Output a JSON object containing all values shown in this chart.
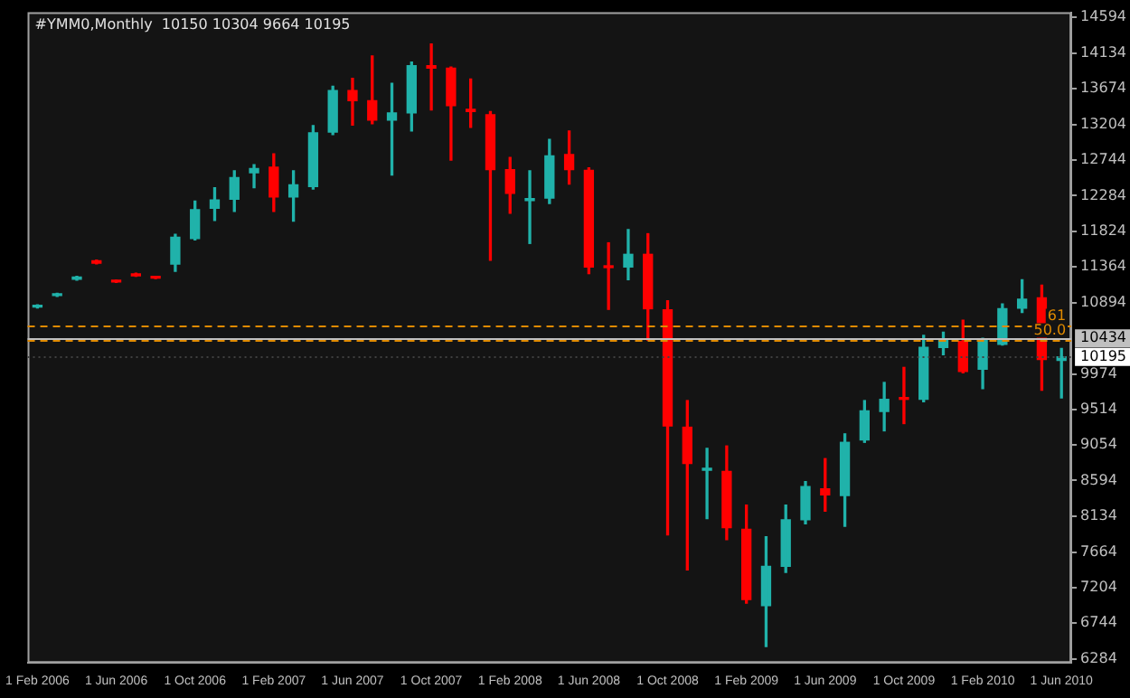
{
  "chart_data": {
    "type": "candlestick",
    "title": "#YMM0,Monthly  10150 10304 9664 10195",
    "categories": [
      "1 Feb 2006",
      null,
      null,
      null,
      "1 Jun 2006",
      null,
      null,
      null,
      "1 Oct 2006",
      null,
      null,
      null,
      "1 Feb 2007",
      null,
      null,
      null,
      "1 Jun 2007",
      null,
      null,
      null,
      "1 Oct 2007",
      null,
      null,
      null,
      "1 Feb 2008",
      null,
      null,
      null,
      "1 Jun 2008",
      null,
      null,
      null,
      "1 Oct 2008",
      null,
      null,
      null,
      "1 Feb 2009",
      null,
      null,
      null,
      "1 Jun 2009",
      null,
      null,
      null,
      "1 Oct 2009",
      null,
      null,
      null,
      "1 Feb 2010",
      null,
      null,
      null,
      "1 Jun 2010"
    ],
    "ohlc": [
      [
        10840,
        10870,
        10830,
        10860
      ],
      [
        10990,
        11020,
        10980,
        11010
      ],
      [
        11200,
        11240,
        11190,
        11230
      ],
      [
        11440,
        11450,
        11400,
        11410
      ],
      [
        11180,
        11190,
        11160,
        11165
      ],
      [
        11270,
        11280,
        11240,
        11245
      ],
      [
        11225,
        11230,
        11210,
        11215
      ],
      [
        11399,
        11783,
        11305,
        11744
      ],
      [
        11728,
        12213,
        11712,
        12104
      ],
      [
        12120,
        12386,
        11963,
        12229
      ],
      [
        12237,
        12605,
        12080,
        12519
      ],
      [
        12582,
        12684,
        12386,
        12637
      ],
      [
        12652,
        12825,
        12080,
        12268
      ],
      [
        12268,
        12605,
        11955,
        12425
      ],
      [
        12402,
        13193,
        12370,
        13099
      ],
      [
        13107,
        13702,
        13075,
        13647
      ],
      [
        13647,
        13804,
        13200,
        13514
      ],
      [
        13514,
        14094,
        13216,
        13263
      ],
      [
        13263,
        13741,
        12550,
        13357
      ],
      [
        13357,
        14015,
        13122,
        13968
      ],
      [
        13968,
        14250,
        13396,
        13937
      ],
      [
        13937,
        13950,
        12746,
        13451
      ],
      [
        13404,
        13796,
        13169,
        13373
      ],
      [
        13334,
        13373,
        11446,
        12621
      ],
      [
        12621,
        12778,
        12057,
        12315
      ],
      [
        12221,
        12605,
        11665,
        12245
      ],
      [
        12253,
        13013,
        12182,
        12801
      ],
      [
        12817,
        13122,
        12433,
        12621
      ],
      [
        12613,
        12644,
        11274,
        11360
      ],
      [
        11368,
        11673,
        10811,
        11352
      ],
      [
        11360,
        11845,
        11195,
        11524
      ],
      [
        11524,
        11791,
        10412,
        10819
      ],
      [
        10804,
        10921,
        7890,
        9300
      ],
      [
        9284,
        9629,
        7435,
        8814
      ],
      [
        8728,
        9010,
        8101,
        8736
      ],
      [
        8712,
        9041,
        7827,
        7984
      ],
      [
        7960,
        8274,
        7005,
        7052
      ],
      [
        6973,
        7866,
        6441,
        7482
      ],
      [
        7482,
        8274,
        7404,
        8085
      ],
      [
        8085,
        8579,
        8031,
        8516
      ],
      [
        8485,
        8877,
        8195,
        8407
      ],
      [
        8399,
        9198,
        8000,
        9088
      ],
      [
        9119,
        9629,
        9088,
        9496
      ],
      [
        9488,
        9864,
        9237,
        9645
      ],
      [
        9652,
        10059,
        9331,
        9645
      ],
      [
        9645,
        10475,
        9613,
        10318
      ],
      [
        10318,
        10514,
        10224,
        10428
      ],
      [
        10396,
        10670,
        9989,
        10005
      ],
      [
        10036,
        10435,
        9785,
        10412
      ],
      [
        10357,
        10882,
        10349,
        10819
      ],
      [
        10827,
        11195,
        10772,
        10944
      ],
      [
        10960,
        11125,
        9762,
        10161
      ],
      [
        10150,
        10304,
        9664,
        10195
      ]
    ],
    "colors": [
      "#20b2aa",
      "#20b2aa",
      "#20b2aa",
      "#ff0000",
      "#ff0000",
      "#ff0000",
      "#ff0000",
      "#20b2aa",
      "#20b2aa",
      "#20b2aa",
      "#20b2aa",
      "#20b2aa",
      "#ff0000",
      "#20b2aa",
      "#20b2aa",
      "#20b2aa",
      "#ff0000",
      "#ff0000",
      "#20b2aa",
      "#20b2aa",
      "#ff0000",
      "#ff0000",
      "#ff0000",
      "#ff0000",
      "#ff0000",
      "#20b2aa",
      "#20b2aa",
      "#ff0000",
      "#ff0000",
      "#ff0000",
      "#20b2aa",
      "#ff0000",
      "#ff0000",
      "#ff0000",
      "#20b2aa",
      "#ff0000",
      "#ff0000",
      "#20b2aa",
      "#20b2aa",
      "#20b2aa",
      "#ff0000",
      "#20b2aa",
      "#20b2aa",
      "#20b2aa",
      "#ff0000",
      "#20b2aa",
      "#20b2aa",
      "#ff0000",
      "#20b2aa",
      "#20b2aa",
      "#20b2aa",
      "#ff0000",
      "#20b2aa"
    ],
    "ylim": [
      6230,
      14660
    ],
    "yticks": [
      14594,
      14134,
      13674,
      13204,
      12744,
      12284,
      11824,
      11364,
      10894,
      9974,
      9514,
      9054,
      8594,
      8134,
      7664,
      7204,
      6744,
      6284
    ],
    "ref_lines": [
      {
        "axis": "y",
        "value": 10434,
        "label": "10434",
        "color": "#c0c0c0",
        "line_style": "solid"
      },
      {
        "axis": "y",
        "value": 10195,
        "label": "10195",
        "color": "#404040",
        "line_style": "dotted"
      },
      {
        "axis": "y",
        "value": 10608,
        "color": "#e08a00",
        "line_style": "dashed"
      },
      {
        "axis": "y",
        "value": 10420,
        "color": "#e08a00",
        "line_style": "dashed"
      }
    ],
    "annotations": [
      {
        "text": "61",
        "y": 10608
      },
      {
        "text": "50.0",
        "y": 10420
      }
    ],
    "grid": false,
    "legend": false
  }
}
